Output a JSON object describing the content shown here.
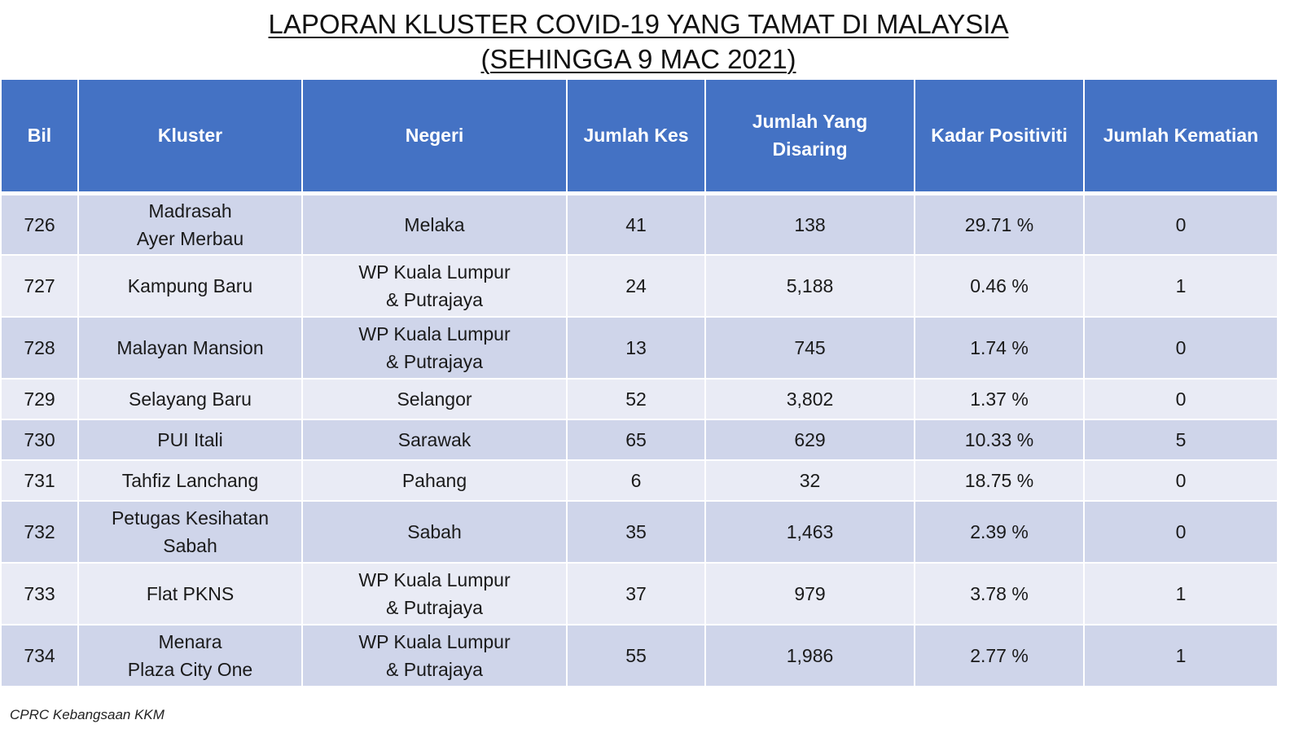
{
  "title": {
    "line1": "LAPORAN KLUSTER COVID-19 YANG TAMAT DI MALAYSIA",
    "line2": "(SEHINGGA 9 MAC 2021)"
  },
  "table": {
    "headers": [
      "Bil",
      "Kluster",
      "Negeri",
      "Jumlah Kes",
      "Jumlah Yang Disaring",
      "Kadar Positiviti",
      "Jumlah Kematian"
    ],
    "rows": [
      {
        "bil": "726",
        "kluster": [
          "Madrasah",
          "Ayer Merbau"
        ],
        "negeri": [
          "Melaka"
        ],
        "kes": "41",
        "disaring": "138",
        "positiviti": "29.71 %",
        "kematian": "0"
      },
      {
        "bil": "727",
        "kluster": [
          "Kampung Baru"
        ],
        "negeri": [
          "WP Kuala Lumpur",
          "& Putrajaya"
        ],
        "kes": "24",
        "disaring": "5,188",
        "positiviti": "0.46 %",
        "kematian": "1"
      },
      {
        "bil": "728",
        "kluster": [
          "Malayan Mansion"
        ],
        "negeri": [
          "WP Kuala Lumpur",
          "& Putrajaya"
        ],
        "kes": "13",
        "disaring": "745",
        "positiviti": "1.74 %",
        "kematian": "0"
      },
      {
        "bil": "729",
        "kluster": [
          "Selayang Baru"
        ],
        "negeri": [
          "Selangor"
        ],
        "kes": "52",
        "disaring": "3,802",
        "positiviti": "1.37 %",
        "kematian": "0"
      },
      {
        "bil": "730",
        "kluster": [
          "PUI Itali"
        ],
        "negeri": [
          "Sarawak"
        ],
        "kes": "65",
        "disaring": "629",
        "positiviti": "10.33 %",
        "kematian": "5"
      },
      {
        "bil": "731",
        "kluster": [
          "Tahfiz Lanchang"
        ],
        "negeri": [
          "Pahang"
        ],
        "kes": "6",
        "disaring": "32",
        "positiviti": "18.75 %",
        "kematian": "0"
      },
      {
        "bil": "732",
        "kluster": [
          "Petugas Kesihatan",
          "Sabah"
        ],
        "negeri": [
          "Sabah"
        ],
        "kes": "35",
        "disaring": "1,463",
        "positiviti": "2.39 %",
        "kematian": "0"
      },
      {
        "bil": "733",
        "kluster": [
          "Flat PKNS"
        ],
        "negeri": [
          "WP Kuala Lumpur",
          "& Putrajaya"
        ],
        "kes": "37",
        "disaring": "979",
        "positiviti": "3.78 %",
        "kematian": "1"
      },
      {
        "bil": "734",
        "kluster": [
          "Menara",
          "Plaza City One"
        ],
        "negeri": [
          "WP Kuala Lumpur",
          "& Putrajaya"
        ],
        "kes": "55",
        "disaring": "1,986",
        "positiviti": "2.77 %",
        "kematian": "1"
      }
    ]
  },
  "footer": "CPRC Kebangsaan KKM",
  "colors": {
    "header_bg": "#4472c4",
    "row_odd": "#cfd5ea",
    "row_even": "#e9ebf5"
  }
}
